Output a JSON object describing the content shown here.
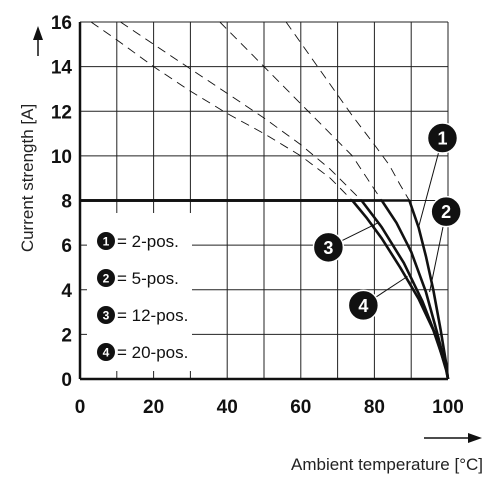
{
  "chart_data": {
    "type": "line",
    "title": "",
    "xlabel": "Ambient temperature [°C]",
    "ylabel": "Current strength [A]",
    "xlim": [
      0,
      100
    ],
    "ylim": [
      0,
      16
    ],
    "x_ticks": [
      "0",
      "20",
      "40",
      "60",
      "80",
      "100"
    ],
    "y_ticks": [
      "0",
      "2",
      "4",
      "6",
      "8",
      "10",
      "12",
      "14",
      "16"
    ],
    "grid": true,
    "legend_position": "lower-left",
    "legend": [
      {
        "marker": "1",
        "label": "= 2-pos."
      },
      {
        "marker": "2",
        "label": "= 5-pos."
      },
      {
        "marker": "3",
        "label": "= 12-pos."
      },
      {
        "marker": "4",
        "label": "= 20-pos."
      }
    ],
    "series": [
      {
        "marker": "1",
        "style": "solid",
        "x": [
          0,
          89.5,
          92,
          94,
          96,
          98,
          99.5,
          100
        ],
        "y": [
          8,
          8,
          6.8,
          5.5,
          4.0,
          2.2,
          0.7,
          0
        ]
      },
      {
        "marker": "2",
        "style": "solid",
        "x": [
          0,
          82,
          86,
          90,
          94,
          97,
          99.5,
          100
        ],
        "y": [
          8,
          8,
          7.0,
          5.7,
          3.9,
          2.1,
          0.5,
          0
        ]
      },
      {
        "marker": "3",
        "style": "solid",
        "x": [
          0,
          76.5,
          82,
          88,
          93,
          97,
          99.5,
          100
        ],
        "y": [
          8,
          8,
          6.8,
          5.2,
          3.5,
          1.8,
          0.4,
          0
        ]
      },
      {
        "marker": "4",
        "style": "solid",
        "x": [
          0,
          74,
          78,
          82,
          87,
          92,
          96,
          99.5,
          100
        ],
        "y": [
          8,
          8,
          7.2,
          6.3,
          5.0,
          3.6,
          2.2,
          0.5,
          0
        ]
      },
      {
        "marker": "1",
        "style": "dashed",
        "x": [
          56,
          62,
          68,
          74,
          80,
          84,
          87,
          89.5
        ],
        "y": [
          16,
          14.6,
          13.2,
          11.8,
          10.5,
          9.6,
          8.7,
          8
        ]
      },
      {
        "marker": "2",
        "style": "dashed",
        "x": [
          38,
          44,
          50,
          56,
          62,
          68,
          74,
          78,
          82
        ],
        "y": [
          16,
          15.0,
          14.0,
          13.0,
          12.0,
          11.0,
          10.0,
          9.0,
          8
        ]
      },
      {
        "marker": "3",
        "style": "dashed",
        "x": [
          11,
          20,
          30,
          40,
          50,
          60,
          68,
          76.5
        ],
        "y": [
          16,
          15.0,
          13.9,
          12.8,
          11.7,
          10.5,
          9.4,
          8
        ]
      },
      {
        "marker": "4",
        "style": "dashed",
        "x": [
          3,
          10,
          20,
          30,
          40,
          50,
          60,
          68,
          74
        ],
        "y": [
          16,
          15.2,
          14.0,
          12.9,
          11.9,
          11.0,
          10.0,
          9.0,
          8
        ]
      }
    ],
    "annotations": [
      {
        "marker": "1",
        "x": 98.5,
        "y": 10.8,
        "points_to": [
          92,
          6.8
        ]
      },
      {
        "marker": "2",
        "x": 99.5,
        "y": 7.5,
        "points_to": [
          95,
          3.9
        ]
      },
      {
        "marker": "3",
        "x": 67.5,
        "y": 5.9,
        "points_to": [
          81,
          7.0
        ]
      },
      {
        "marker": "4",
        "x": 77,
        "y": 3.3,
        "points_to": [
          89,
          4.6
        ]
      }
    ]
  }
}
